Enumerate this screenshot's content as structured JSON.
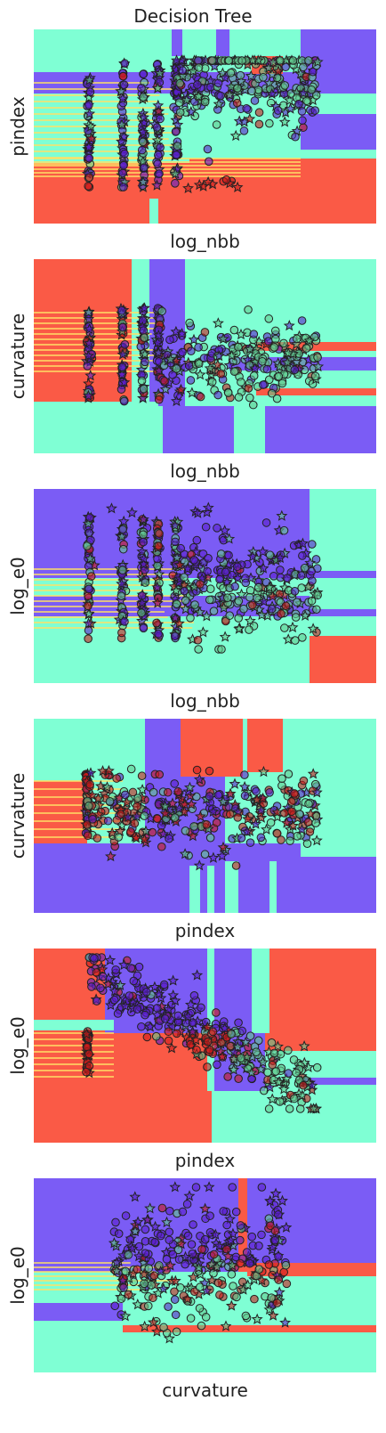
{
  "title": "Decision Tree",
  "colors": {
    "class_a_region": "#7fffd4",
    "class_b_region": "#7b5cf5",
    "class_c_region": "#fa5a46",
    "boundary": "#ffe066",
    "point_a": "#62c98f",
    "point_b": "#5a1ecc",
    "point_c": "#cc1a1a",
    "marker_edge": "#222222"
  },
  "markers": [
    "circle",
    "star"
  ],
  "chart_data": [
    {
      "type": "scatter",
      "xlabel": "log_nbb",
      "ylabel": "pindex",
      "grid": false,
      "legend": "none",
      "ticks": "hidden"
    },
    {
      "type": "scatter",
      "xlabel": "log_nbb",
      "ylabel": "curvature",
      "grid": false,
      "legend": "none",
      "ticks": "hidden"
    },
    {
      "type": "scatter",
      "xlabel": "log_nbb",
      "ylabel": "log_e0",
      "grid": false,
      "legend": "none",
      "ticks": "hidden"
    },
    {
      "type": "scatter",
      "xlabel": "pindex",
      "ylabel": "curvature",
      "grid": false,
      "legend": "none",
      "ticks": "hidden"
    },
    {
      "type": "scatter",
      "xlabel": "pindex",
      "ylabel": "log_e0",
      "grid": false,
      "legend": "none",
      "ticks": "hidden"
    },
    {
      "type": "scatter",
      "xlabel": "curvature",
      "ylabel": "log_e0",
      "grid": false,
      "legend": "none",
      "ticks": "hidden"
    }
  ]
}
